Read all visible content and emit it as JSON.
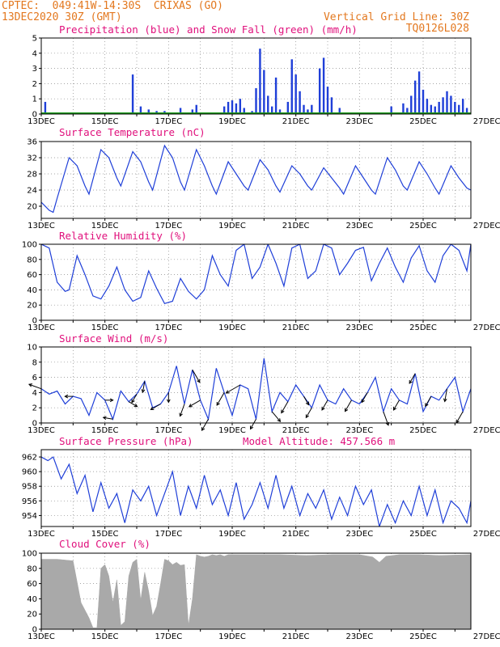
{
  "header": {
    "line1": "CPTEC:  049:41W-14:30S  CRIXAS (GO)",
    "line2_left": "13DEC2020 30Z (GMT)",
    "line2_right": "Vertical Grid Line: 30Z",
    "line3_right": "TQ0126L028"
  },
  "colors": {
    "header": "#e3781f",
    "title": "#e0107c",
    "line": "#1f3fd8",
    "precip": "#1f3fd8",
    "snow": "#1b9a1b",
    "cloud": "#a9a9a9"
  },
  "chart_data": [
    {
      "id": "precip",
      "type": "bar",
      "title": "Precipitation (blue) and Snow Fall (green) (mm/h)",
      "ylim": [
        0,
        5
      ],
      "yticks": [
        0,
        1,
        2,
        3,
        4,
        5
      ],
      "x_tick_labels": [
        "13DEC",
        "15DEC",
        "17DEC",
        "19DEC",
        "21DEC",
        "23DEC",
        "25DEC",
        "27DEC"
      ],
      "series": [
        {
          "name": "Precipitation",
          "x_hours": [
            3,
            69,
            75,
            81,
            87,
            93,
            105,
            114,
            117,
            138,
            141,
            144,
            147,
            150,
            153,
            159,
            162,
            165,
            168,
            171,
            174,
            177,
            180,
            186,
            189,
            192,
            195,
            198,
            201,
            204,
            210,
            213,
            216,
            219,
            225,
            264,
            273,
            276,
            279,
            282,
            285,
            288,
            291,
            294,
            297,
            300,
            303,
            306,
            309,
            312,
            315,
            318,
            321
          ],
          "values": [
            0.8,
            2.6,
            0.5,
            0.3,
            0.2,
            0.2,
            0.4,
            0.3,
            0.6,
            0.5,
            0.8,
            0.9,
            0.7,
            1.0,
            0.4,
            0.2,
            1.7,
            4.3,
            2.9,
            1.2,
            0.5,
            2.4,
            0.3,
            0.8,
            3.6,
            2.6,
            1.5,
            0.6,
            0.3,
            0.6,
            3.0,
            3.7,
            1.8,
            1.1,
            0.4,
            0.5,
            0.7,
            0.4,
            1.2,
            2.2,
            2.8,
            1.6,
            1.0,
            0.6,
            0.5,
            0.8,
            1.1,
            1.5,
            1.2,
            0.8,
            0.6,
            1.0,
            0.4
          ]
        },
        {
          "name": "Snow Fall",
          "x_hours": [],
          "values": []
        }
      ]
    },
    {
      "id": "temp",
      "type": "line",
      "title": "Surface Temperature (nC)",
      "ylim": [
        17,
        36
      ],
      "yticks": [
        20,
        24,
        28,
        32,
        36
      ],
      "x_tick_labels": [
        "13DEC",
        "15DEC",
        "17DEC",
        "19DEC",
        "21DEC",
        "23DEC",
        "25DEC",
        "27DEC"
      ],
      "x_hours": [
        0,
        6,
        9,
        12,
        21,
        27,
        33,
        36,
        45,
        51,
        57,
        60,
        69,
        75,
        81,
        84,
        93,
        99,
        105,
        108,
        117,
        123,
        129,
        132,
        141,
        147,
        153,
        156,
        165,
        171,
        177,
        180,
        189,
        195,
        201,
        204,
        213,
        219,
        225,
        228,
        237,
        243,
        249,
        252,
        261,
        267,
        273,
        276,
        285,
        291,
        297,
        300,
        309,
        315,
        321,
        324
      ],
      "values": [
        21,
        19,
        18.5,
        22,
        32,
        30,
        25,
        23,
        34,
        32,
        27,
        25,
        33.5,
        31,
        26,
        24,
        35,
        32,
        26,
        24,
        34,
        30,
        25,
        23,
        31,
        28,
        25,
        24,
        31.5,
        29,
        25,
        23.5,
        30,
        28,
        25,
        24,
        29.5,
        27,
        24.5,
        23,
        30,
        27,
        24,
        23,
        32,
        29,
        25,
        24,
        31,
        28,
        24.5,
        23,
        30,
        27,
        24.5,
        24
      ]
    },
    {
      "id": "rh",
      "type": "line",
      "title": "Relative Humidity (%)",
      "ylim": [
        0,
        100
      ],
      "yticks": [
        0,
        20,
        40,
        60,
        80,
        100
      ],
      "x_tick_labels": [
        "13DEC",
        "15DEC",
        "17DEC",
        "19DEC",
        "21DEC",
        "23DEC",
        "25DEC",
        "27DEC"
      ],
      "x_hours": [
        0,
        6,
        12,
        18,
        21,
        27,
        33,
        39,
        45,
        51,
        57,
        63,
        69,
        75,
        81,
        87,
        93,
        99,
        105,
        111,
        117,
        123,
        129,
        135,
        141,
        147,
        153,
        159,
        165,
        171,
        177,
        183,
        189,
        195,
        201,
        207,
        213,
        219,
        225,
        231,
        237,
        243,
        249,
        255,
        261,
        267,
        273,
        279,
        285,
        291,
        297,
        303,
        309,
        315,
        321,
        324
      ],
      "values": [
        100,
        95,
        50,
        38,
        40,
        85,
        60,
        32,
        28,
        45,
        70,
        40,
        25,
        30,
        65,
        42,
        22,
        25,
        55,
        38,
        28,
        40,
        85,
        60,
        45,
        92,
        100,
        55,
        70,
        100,
        75,
        45,
        95,
        100,
        55,
        65,
        100,
        95,
        60,
        75,
        92,
        96,
        52,
        75,
        95,
        70,
        50,
        82,
        98,
        65,
        50,
        85,
        100,
        92,
        65,
        100
      ]
    },
    {
      "id": "wind",
      "type": "line",
      "title": "Surface Wind (m/s)",
      "ylim": [
        0,
        10
      ],
      "yticks": [
        0,
        2,
        4,
        6,
        8,
        10
      ],
      "x_tick_labels": [
        "13DEC",
        "15DEC",
        "17DEC",
        "19DEC",
        "21DEC",
        "23DEC",
        "25DEC",
        "27DEC"
      ],
      "x_hours": [
        0,
        6,
        12,
        18,
        24,
        30,
        36,
        42,
        48,
        54,
        60,
        66,
        72,
        78,
        84,
        90,
        96,
        102,
        108,
        114,
        120,
        126,
        132,
        138,
        144,
        150,
        156,
        162,
        168,
        174,
        180,
        186,
        192,
        198,
        204,
        210,
        216,
        222,
        228,
        234,
        240,
        246,
        252,
        258,
        264,
        270,
        276,
        282,
        288,
        294,
        300,
        306,
        312,
        318,
        324
      ],
      "values": [
        4.5,
        3.8,
        4.2,
        2.5,
        3.5,
        3.2,
        1.0,
        4.0,
        3.0,
        0.5,
        4.2,
        2.8,
        3.8,
        5.5,
        2.0,
        2.5,
        4.0,
        7.5,
        2.5,
        7.0,
        3.0,
        0.5,
        7.2,
        4.0,
        1.0,
        5.0,
        4.5,
        0.5,
        8.5,
        1.5,
        4.0,
        2.8,
        5.0,
        3.5,
        2.0,
        5.0,
        3.0,
        2.5,
        4.5,
        3.0,
        2.5,
        4.0,
        6.0,
        1.5,
        4.5,
        3.0,
        2.5,
        6.5,
        1.5,
        3.5,
        3.0,
        4.5,
        6.0,
        1.5,
        4.5
      ],
      "arrows_hours": [
        0,
        24,
        48,
        54,
        66,
        72,
        78,
        90,
        96,
        108,
        114,
        120,
        126,
        138,
        150,
        162,
        174,
        186,
        198,
        204,
        216,
        234,
        246,
        258,
        270,
        282,
        294,
        306,
        318
      ],
      "arrows_deg": [
        -160,
        180,
        0,
        -170,
        30,
        120,
        100,
        150,
        90,
        110,
        60,
        150,
        120,
        120,
        150,
        120,
        50,
        120,
        60,
        120,
        120,
        120,
        120,
        70,
        120,
        120,
        120,
        100,
        120
      ],
      "arrows_len": [
        16,
        10,
        10,
        12,
        12,
        12,
        14,
        14,
        12,
        16,
        18,
        16,
        16,
        18,
        20,
        14,
        16,
        16,
        12,
        14,
        14,
        16,
        14,
        18,
        14,
        14,
        14,
        16,
        16
      ]
    },
    {
      "id": "pres",
      "type": "line",
      "title": "Surface Pressure (hPa)",
      "annotation": "Model Altitude: 457.566 m",
      "ylim": [
        952.5,
        963
      ],
      "yticks": [
        954,
        956,
        958,
        960,
        962
      ],
      "x_tick_labels": [
        "13DEC",
        "15DEC",
        "17DEC",
        "19DEC",
        "21DEC",
        "23DEC",
        "25DEC",
        "27DEC"
      ],
      "x_hours": [
        0,
        5,
        9,
        15,
        21,
        27,
        33,
        39,
        45,
        51,
        57,
        63,
        69,
        75,
        81,
        87,
        93,
        99,
        105,
        111,
        117,
        123,
        129,
        135,
        141,
        147,
        153,
        159,
        165,
        171,
        177,
        183,
        189,
        195,
        201,
        207,
        213,
        219,
        225,
        231,
        237,
        243,
        249,
        255,
        261,
        267,
        273,
        279,
        285,
        291,
        297,
        303,
        309,
        315,
        321,
        324
      ],
      "values": [
        962,
        961.5,
        962,
        959,
        961,
        957,
        959.5,
        954.5,
        958.5,
        955,
        957,
        953,
        957.5,
        956,
        958,
        954,
        957,
        960,
        954,
        958,
        955,
        959.5,
        955.5,
        957.5,
        954,
        958.5,
        953.5,
        955.5,
        958.5,
        955,
        959.5,
        955,
        958,
        954,
        957,
        955,
        957.5,
        953.5,
        956.5,
        954,
        958,
        955.5,
        957.5,
        952.5,
        955.5,
        953,
        956,
        954,
        958,
        954,
        957.5,
        953,
        956,
        955,
        953,
        956
      ]
    },
    {
      "id": "cloud",
      "type": "area",
      "title": "Cloud Cover (%)",
      "ylim": [
        0,
        100
      ],
      "yticks": [
        0,
        20,
        40,
        60,
        80,
        100
      ],
      "x_tick_labels": [
        "13DEC",
        "15DEC",
        "17DEC",
        "19DEC",
        "21DEC",
        "23DEC",
        "25DEC",
        "27DEC"
      ],
      "x_hours": [
        0,
        12,
        24,
        30,
        33,
        36,
        39,
        42,
        45,
        48,
        51,
        54,
        57,
        60,
        63,
        66,
        69,
        72,
        75,
        78,
        81,
        84,
        87,
        90,
        93,
        96,
        99,
        102,
        105,
        108,
        111,
        114,
        117,
        120,
        123,
        126,
        129,
        132,
        135,
        138,
        141,
        150,
        165,
        180,
        200,
        220,
        240,
        250,
        255,
        260,
        270,
        285,
        300,
        324
      ],
      "values": [
        92,
        92,
        90,
        35,
        25,
        15,
        2,
        2,
        80,
        85,
        70,
        35,
        65,
        5,
        10,
        70,
        88,
        92,
        38,
        75,
        50,
        18,
        30,
        60,
        92,
        90,
        85,
        88,
        84,
        85,
        5,
        40,
        98,
        96,
        95,
        96,
        98,
        97,
        98,
        96,
        98,
        98,
        98,
        98,
        97,
        98,
        98,
        95,
        88,
        96,
        98,
        98,
        97,
        98
      ]
    }
  ]
}
